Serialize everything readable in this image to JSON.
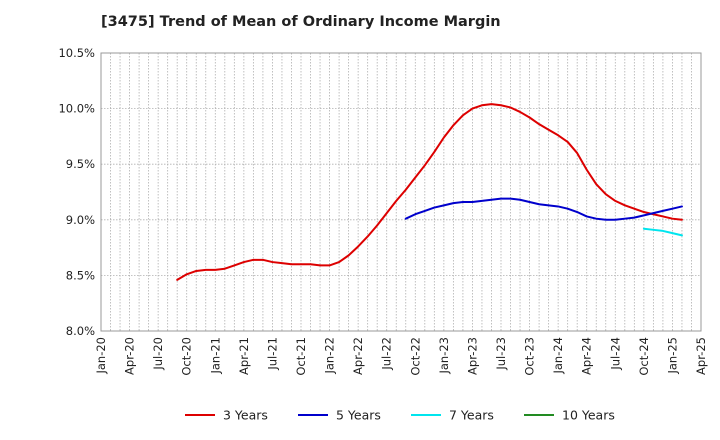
{
  "header": {
    "title": "[3475]  Trend of Mean of Ordinary Income Margin"
  },
  "chart_data": {
    "type": "line",
    "title": "[3475]  Trend of Mean of Ordinary Income Margin",
    "xlabel": "",
    "ylabel": "",
    "ylim": [
      8.0,
      10.5
    ],
    "xlim": [
      "2020-01",
      "2025-04"
    ],
    "grid": true,
    "legend_position": "bottom",
    "x_tick_labels": [
      "Jan-20",
      "Apr-20",
      "Jul-20",
      "Oct-20",
      "Jan-21",
      "Apr-21",
      "Jul-21",
      "Oct-21",
      "Jan-22",
      "Apr-22",
      "Jul-22",
      "Oct-22",
      "Jan-23",
      "Apr-23",
      "Jul-23",
      "Oct-23",
      "Jan-24",
      "Apr-24",
      "Jul-24",
      "Oct-24",
      "Jan-25",
      "Apr-25"
    ],
    "y_tick_labels": [
      "8.0%",
      "8.5%",
      "9.0%",
      "9.5%",
      "10.0%",
      "10.5%"
    ],
    "y_ticks": [
      8.0,
      8.5,
      9.0,
      9.5,
      10.0,
      10.5
    ],
    "series": [
      {
        "name": "3 Years",
        "color": "#dd0000",
        "points": [
          [
            "2020-09",
            8.46
          ],
          [
            "2020-10",
            8.51
          ],
          [
            "2020-11",
            8.54
          ],
          [
            "2020-12",
            8.55
          ],
          [
            "2021-01",
            8.55
          ],
          [
            "2021-02",
            8.56
          ],
          [
            "2021-03",
            8.59
          ],
          [
            "2021-04",
            8.62
          ],
          [
            "2021-05",
            8.64
          ],
          [
            "2021-06",
            8.64
          ],
          [
            "2021-07",
            8.62
          ],
          [
            "2021-08",
            8.61
          ],
          [
            "2021-09",
            8.6
          ],
          [
            "2021-10",
            8.6
          ],
          [
            "2021-11",
            8.6
          ],
          [
            "2021-12",
            8.59
          ],
          [
            "2022-01",
            8.59
          ],
          [
            "2022-02",
            8.62
          ],
          [
            "2022-03",
            8.68
          ],
          [
            "2022-04",
            8.76
          ],
          [
            "2022-05",
            8.85
          ],
          [
            "2022-06",
            8.95
          ],
          [
            "2022-07",
            9.06
          ],
          [
            "2022-08",
            9.17
          ],
          [
            "2022-09",
            9.27
          ],
          [
            "2022-10",
            9.38
          ],
          [
            "2022-11",
            9.49
          ],
          [
            "2022-12",
            9.61
          ],
          [
            "2023-01",
            9.74
          ],
          [
            "2023-02",
            9.85
          ],
          [
            "2023-03",
            9.94
          ],
          [
            "2023-04",
            10.0
          ],
          [
            "2023-05",
            10.03
          ],
          [
            "2023-06",
            10.04
          ],
          [
            "2023-07",
            10.03
          ],
          [
            "2023-08",
            10.01
          ],
          [
            "2023-09",
            9.97
          ],
          [
            "2023-10",
            9.92
          ],
          [
            "2023-11",
            9.86
          ],
          [
            "2023-12",
            9.81
          ],
          [
            "2024-01",
            9.76
          ],
          [
            "2024-02",
            9.7
          ],
          [
            "2024-03",
            9.6
          ],
          [
            "2024-04",
            9.45
          ],
          [
            "2024-05",
            9.32
          ],
          [
            "2024-06",
            9.23
          ],
          [
            "2024-07",
            9.17
          ],
          [
            "2024-08",
            9.13
          ],
          [
            "2024-09",
            9.1
          ],
          [
            "2024-10",
            9.07
          ],
          [
            "2024-11",
            9.05
          ],
          [
            "2024-12",
            9.03
          ],
          [
            "2025-01",
            9.01
          ],
          [
            "2025-02",
            9.0
          ]
        ]
      },
      {
        "name": "5 Years",
        "color": "#0000cc",
        "points": [
          [
            "2022-09",
            9.01
          ],
          [
            "2022-10",
            9.05
          ],
          [
            "2022-11",
            9.08
          ],
          [
            "2022-12",
            9.11
          ],
          [
            "2023-01",
            9.13
          ],
          [
            "2023-02",
            9.15
          ],
          [
            "2023-03",
            9.16
          ],
          [
            "2023-04",
            9.16
          ],
          [
            "2023-05",
            9.17
          ],
          [
            "2023-06",
            9.18
          ],
          [
            "2023-07",
            9.19
          ],
          [
            "2023-08",
            9.19
          ],
          [
            "2023-09",
            9.18
          ],
          [
            "2023-10",
            9.16
          ],
          [
            "2023-11",
            9.14
          ],
          [
            "2023-12",
            9.13
          ],
          [
            "2024-01",
            9.12
          ],
          [
            "2024-02",
            9.1
          ],
          [
            "2024-03",
            9.07
          ],
          [
            "2024-04",
            9.03
          ],
          [
            "2024-05",
            9.01
          ],
          [
            "2024-06",
            9.0
          ],
          [
            "2024-07",
            9.0
          ],
          [
            "2024-08",
            9.01
          ],
          [
            "2024-09",
            9.02
          ],
          [
            "2024-10",
            9.04
          ],
          [
            "2024-11",
            9.06
          ],
          [
            "2024-12",
            9.08
          ],
          [
            "2025-01",
            9.1
          ],
          [
            "2025-02",
            9.12
          ]
        ]
      },
      {
        "name": "7 Years",
        "color": "#00e5ee",
        "points": [
          [
            "2024-10",
            8.92
          ],
          [
            "2024-11",
            8.91
          ],
          [
            "2024-12",
            8.9
          ],
          [
            "2025-01",
            8.88
          ],
          [
            "2025-02",
            8.86
          ]
        ]
      },
      {
        "name": "10 Years",
        "color": "#228b22",
        "points": []
      }
    ]
  }
}
